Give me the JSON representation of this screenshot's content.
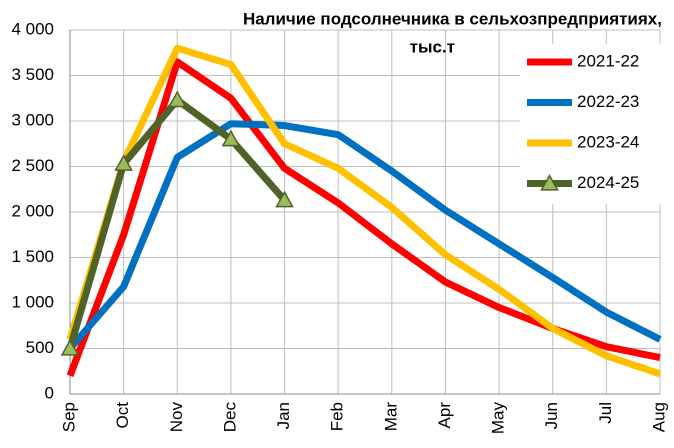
{
  "chart_data": {
    "type": "line",
    "title": [
      "Наличие подсолнечника в сельхозпредприятиях,",
      "тыс.т"
    ],
    "categories": [
      "Sep",
      "Oct",
      "Nov",
      "Dec",
      "Jan",
      "Feb",
      "Mar",
      "Apr",
      "May",
      "Jun",
      "Jul",
      "Aug"
    ],
    "series": [
      {
        "name": "2021-22",
        "color": "#ff0000",
        "values": [
          200,
          1750,
          3650,
          3250,
          2480,
          2100,
          1650,
          1230,
          950,
          720,
          520,
          400
        ]
      },
      {
        "name": "2022-23",
        "color": "#0070c0",
        "values": [
          500,
          1180,
          2600,
          2970,
          2950,
          2850,
          2450,
          2020,
          1650,
          1280,
          900,
          600
        ]
      },
      {
        "name": "2023-24",
        "color": "#ffc000",
        "values": [
          600,
          2550,
          3800,
          3620,
          2750,
          2480,
          2050,
          1530,
          1150,
          720,
          420,
          220
        ]
      },
      {
        "name": "2024-25",
        "color": "#4f6228",
        "marker": "triangle",
        "marker_color": "#9bbb59",
        "values": [
          500,
          2530,
          3230,
          2800,
          2130,
          null,
          null,
          null,
          null,
          null,
          null,
          null
        ]
      }
    ],
    "ylim": [
      0,
      4000
    ],
    "yticks": [
      0,
      500,
      {
        "value": 1000,
        "label": "1 000"
      },
      {
        "value": 1500,
        "label": "1 500"
      },
      {
        "value": 2000,
        "label": "2 000"
      },
      {
        "value": 2500,
        "label": "2 500"
      },
      {
        "value": 3000,
        "label": "3 000"
      },
      {
        "value": 3500,
        "label": "3 500"
      },
      {
        "value": 4000,
        "label": "4 000"
      }
    ],
    "grid": true,
    "legend": "upper right"
  }
}
